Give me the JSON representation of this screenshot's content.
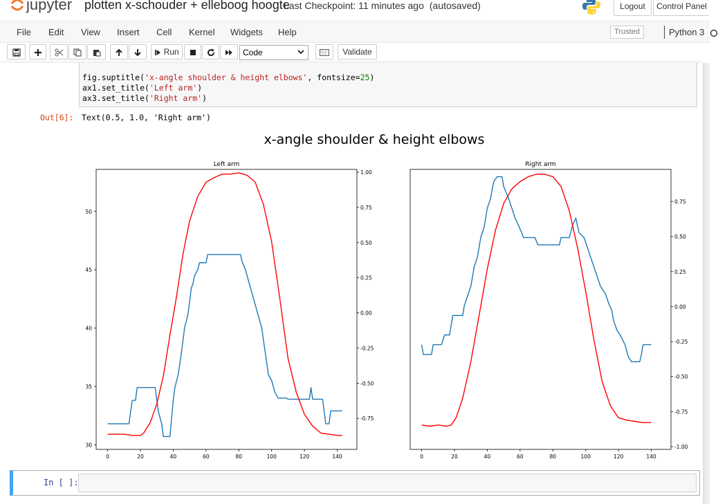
{
  "header": {
    "logo_text": "jupyter",
    "notebook_title": "plotten x-schouder + elleboog hoogte",
    "checkpoint": "Last Checkpoint: 11 minutes ago",
    "autosave": "(autosaved)",
    "logout": "Logout",
    "control_panel": "Control Panel"
  },
  "menu": {
    "items": [
      "File",
      "Edit",
      "View",
      "Insert",
      "Cell",
      "Kernel",
      "Widgets",
      "Help"
    ],
    "trusted": "Trusted",
    "kernel": "Python 3"
  },
  "toolbar": {
    "run_label": "Run",
    "cell_type": "Code",
    "validate": "Validate",
    "icons": [
      "save-icon",
      "plus-icon",
      "cut-icon",
      "copy-icon",
      "paste-icon",
      "arrow-up-icon",
      "arrow-down-icon",
      "step-forward-icon",
      "stop-icon",
      "restart-icon",
      "fast-forward-icon",
      "keyboard-icon"
    ]
  },
  "cell": {
    "code_lines": [
      [
        {
          "t": "fig.suptitle("
        },
        {
          "t": "'x-angle shoulder & height elbows'",
          "c": "str"
        },
        {
          "t": ", fontsize="
        },
        {
          "t": "25",
          "c": "num"
        },
        {
          "t": ")"
        }
      ],
      [
        {
          "t": "ax1.set_title("
        },
        {
          "t": "'Left arm'",
          "c": "str"
        },
        {
          "t": ")"
        }
      ],
      [
        {
          "t": "ax3.set_title("
        },
        {
          "t": "'Right arm'",
          "c": "str"
        },
        {
          "t": ")"
        }
      ]
    ],
    "out_prompt": "Out[6]:",
    "out_text": "Text(0.5, 1.0, 'Right arm')",
    "next_prompt": "In [ ]:"
  },
  "chart_data": [
    {
      "type": "line",
      "title": "Left arm",
      "suptitle": "x-angle shoulder & height elbows",
      "xlim": [
        -7,
        152
      ],
      "x_ticks": [
        0,
        20,
        40,
        60,
        80,
        100,
        120,
        140
      ],
      "left_axis": {
        "ylim": [
          29.6,
          53.6
        ],
        "ticks": [
          30,
          35,
          40,
          45,
          50
        ]
      },
      "right_axis": {
        "ylim": [
          -0.97,
          1.02
        ],
        "ticks": [
          -0.75,
          -0.5,
          -0.25,
          0.0,
          0.25,
          0.5,
          0.75,
          1.0
        ],
        "tick_labels": [
          "-0.75",
          "-0.50",
          "-0.25",
          "0.00",
          "0.25",
          "0.50",
          "0.75",
          "1.00"
        ]
      },
      "series": [
        {
          "axis": "left",
          "color": "#1f77b4",
          "points": [
            [
              0,
              31.8
            ],
            [
              13,
              31.8
            ],
            [
              14,
              32.8
            ],
            [
              15,
              33.8
            ],
            [
              17,
              33.8
            ],
            [
              18,
              34.9
            ],
            [
              20,
              34.9
            ],
            [
              29,
              34.9
            ],
            [
              30,
              33.8
            ],
            [
              31,
              32.8
            ],
            [
              33,
              31.8
            ],
            [
              34,
              30.7
            ],
            [
              38,
              30.7
            ],
            [
              39,
              32.3
            ],
            [
              40,
              33.8
            ],
            [
              41,
              34.9
            ],
            [
              43,
              36.0
            ],
            [
              44,
              36.9
            ],
            [
              45,
              37.9
            ],
            [
              46,
              39.0
            ],
            [
              47,
              40.1
            ],
            [
              48,
              40.6
            ],
            [
              49,
              41.2
            ],
            [
              50,
              42.3
            ],
            [
              51,
              43.4
            ],
            [
              52,
              43.8
            ],
            [
              53,
              44.5
            ],
            [
              55,
              45.0
            ],
            [
              56,
              45.6
            ],
            [
              60,
              45.6
            ],
            [
              61,
              46.3
            ],
            [
              81,
              46.3
            ],
            [
              82,
              45.7
            ],
            [
              84,
              45.0
            ],
            [
              86,
              44.0
            ],
            [
              88,
              43.0
            ],
            [
              90,
              42.0
            ],
            [
              92,
              41.0
            ],
            [
              94,
              40.0
            ],
            [
              95,
              39.0
            ],
            [
              96,
              38.0
            ],
            [
              97,
              37.0
            ],
            [
              98,
              36.0
            ],
            [
              100,
              35.5
            ],
            [
              101,
              35.0
            ],
            [
              102,
              34.5
            ],
            [
              104,
              34.0
            ],
            [
              109,
              34.0
            ],
            [
              110,
              33.9
            ],
            [
              123,
              33.9
            ],
            [
              124,
              34.9
            ],
            [
              125,
              33.9
            ],
            [
              131,
              33.9
            ],
            [
              132,
              32.9
            ],
            [
              133,
              31.8
            ],
            [
              135,
              31.8
            ],
            [
              136,
              32.9
            ],
            [
              143,
              32.9
            ]
          ]
        },
        {
          "axis": "left",
          "color": "#ff0000",
          "points": [
            [
              0,
              30.9
            ],
            [
              10,
              30.9
            ],
            [
              15,
              30.8
            ],
            [
              20,
              30.8
            ],
            [
              22,
              31.0
            ],
            [
              26,
              31.9
            ],
            [
              30,
              33.5
            ],
            [
              34,
              35.9
            ],
            [
              38,
              39.4
            ],
            [
              42,
              42.7
            ],
            [
              46,
              46.4
            ],
            [
              50,
              49.2
            ],
            [
              55,
              51.3
            ],
            [
              60,
              52.5
            ],
            [
              65,
              52.9
            ],
            [
              70,
              53.2
            ],
            [
              75,
              53.2
            ],
            [
              80,
              53.3
            ],
            [
              85,
              53.1
            ],
            [
              90,
              52.5
            ],
            [
              95,
              50.6
            ],
            [
              100,
              47.4
            ],
            [
              105,
              42.5
            ],
            [
              110,
              37.4
            ],
            [
              115,
              34.5
            ],
            [
              120,
              32.6
            ],
            [
              125,
              31.6
            ],
            [
              130,
              31.0
            ],
            [
              135,
              30.9
            ],
            [
              140,
              30.8
            ],
            [
              143,
              30.8
            ]
          ]
        }
      ]
    },
    {
      "type": "line",
      "title": "Right arm",
      "xlim": [
        -7,
        152
      ],
      "x_ticks": [
        0,
        20,
        40,
        60,
        80,
        100,
        120,
        140
      ],
      "left_axis": {
        "ylim": [
          -0.08,
          1.07
        ],
        "ticks": []
      },
      "right_axis": {
        "ylim": [
          -1.02,
          0.98
        ],
        "ticks": [
          -1.0,
          -0.75,
          -0.5,
          -0.25,
          0.0,
          0.25,
          0.5,
          0.75
        ],
        "tick_labels": [
          "-1.00",
          "-0.75",
          "-0.50",
          "-0.25",
          "0.00",
          "0.25",
          "0.50",
          "0.75"
        ]
      },
      "series": [
        {
          "axis": "left",
          "color": "#1f77b4",
          "points": [
            [
              0,
              0.35
            ],
            [
              1,
              0.31
            ],
            [
              6,
              0.31
            ],
            [
              7,
              0.35
            ],
            [
              12,
              0.35
            ],
            [
              14,
              0.39
            ],
            [
              17,
              0.39
            ],
            [
              18,
              0.43
            ],
            [
              19,
              0.47
            ],
            [
              25,
              0.47
            ],
            [
              26,
              0.51
            ],
            [
              28,
              0.55
            ],
            [
              30,
              0.59
            ],
            [
              31,
              0.63
            ],
            [
              32,
              0.67
            ],
            [
              34,
              0.71
            ],
            [
              35,
              0.75
            ],
            [
              36,
              0.79
            ],
            [
              38,
              0.83
            ],
            [
              39,
              0.87
            ],
            [
              40,
              0.91
            ],
            [
              42,
              0.95
            ],
            [
              43,
              0.99
            ],
            [
              44,
              1.02
            ],
            [
              46,
              1.04
            ],
            [
              49,
              1.04
            ],
            [
              50,
              1.0
            ],
            [
              53,
              0.95
            ],
            [
              55,
              0.91
            ],
            [
              57,
              0.87
            ],
            [
              59,
              0.84
            ],
            [
              61,
              0.81
            ],
            [
              62,
              0.79
            ],
            [
              69,
              0.79
            ],
            [
              71,
              0.76
            ],
            [
              84,
              0.76
            ],
            [
              85,
              0.79
            ],
            [
              90,
              0.79
            ],
            [
              92,
              0.84
            ],
            [
              94,
              0.87
            ],
            [
              95,
              0.84
            ],
            [
              96,
              0.81
            ],
            [
              99,
              0.79
            ],
            [
              101,
              0.75
            ],
            [
              103,
              0.71
            ],
            [
              105,
              0.67
            ],
            [
              107,
              0.63
            ],
            [
              109,
              0.59
            ],
            [
              112,
              0.56
            ],
            [
              114,
              0.52
            ],
            [
              116,
              0.49
            ],
            [
              117,
              0.45
            ],
            [
              119,
              0.41
            ],
            [
              121,
              0.39
            ],
            [
              124,
              0.35
            ],
            [
              126,
              0.3
            ],
            [
              128,
              0.28
            ],
            [
              133,
              0.28
            ],
            [
              134,
              0.31
            ],
            [
              135,
              0.35
            ],
            [
              140,
              0.35
            ]
          ]
        },
        {
          "axis": "left",
          "color": "#ff0000",
          "points": [
            [
              0,
              0.02
            ],
            [
              5,
              0.015
            ],
            [
              10,
              0.02
            ],
            [
              15,
              0.015
            ],
            [
              18,
              0.02
            ],
            [
              21,
              0.05
            ],
            [
              25,
              0.13
            ],
            [
              30,
              0.28
            ],
            [
              35,
              0.47
            ],
            [
              40,
              0.66
            ],
            [
              45,
              0.82
            ],
            [
              50,
              0.93
            ],
            [
              55,
              0.99
            ],
            [
              60,
              1.02
            ],
            [
              65,
              1.04
            ],
            [
              70,
              1.05
            ],
            [
              75,
              1.05
            ],
            [
              80,
              1.04
            ],
            [
              85,
              1.0
            ],
            [
              90,
              0.9
            ],
            [
              95,
              0.75
            ],
            [
              100,
              0.57
            ],
            [
              105,
              0.37
            ],
            [
              110,
              0.2
            ],
            [
              115,
              0.1
            ],
            [
              120,
              0.05
            ],
            [
              125,
              0.04
            ],
            [
              130,
              0.035
            ],
            [
              135,
              0.03
            ],
            [
              140,
              0.03
            ]
          ]
        }
      ]
    }
  ]
}
